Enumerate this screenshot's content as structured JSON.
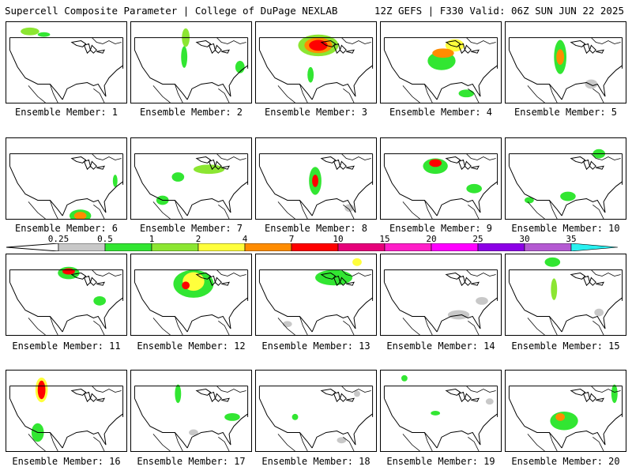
{
  "header": {
    "title": "Supercell Composite Parameter | College of DuPage NEXLAB",
    "run_info": "12Z GEFS | F330 Valid: 06Z SUN JUN 22 2025"
  },
  "members": [
    {
      "label": "Ensemble Member: 1"
    },
    {
      "label": "Ensemble Member: 2"
    },
    {
      "label": "Ensemble Member: 3"
    },
    {
      "label": "Ensemble Member: 4"
    },
    {
      "label": "Ensemble Member: 5"
    },
    {
      "label": "Ensemble Member: 6"
    },
    {
      "label": "Ensemble Member: 7"
    },
    {
      "label": "Ensemble Member: 8"
    },
    {
      "label": "Ensemble Member: 9"
    },
    {
      "label": "Ensemble Member: 10"
    },
    {
      "label": "Ensemble Member: 11"
    },
    {
      "label": "Ensemble Member: 12"
    },
    {
      "label": "Ensemble Member: 13"
    },
    {
      "label": "Ensemble Member: 14"
    },
    {
      "label": "Ensemble Member: 15"
    },
    {
      "label": "Ensemble Member: 16"
    },
    {
      "label": "Ensemble Member: 17"
    },
    {
      "label": "Ensemble Member: 18"
    },
    {
      "label": "Ensemble Member: 19"
    },
    {
      "label": "Ensemble Member: 20"
    }
  ],
  "colorbar": {
    "ticks": [
      "0.25",
      "0.5",
      "1",
      "2",
      "4",
      "7",
      "10",
      "15",
      "20",
      "25",
      "30",
      "35"
    ],
    "colors": [
      "#c8c8c8",
      "#32e632",
      "#8ce632",
      "#ffff3c",
      "#ff8c00",
      "#ff0000",
      "#e6007a",
      "#ff1ec8",
      "#ff00ff",
      "#8c00e6",
      "#b45ad2",
      "#28f0f0"
    ]
  }
}
